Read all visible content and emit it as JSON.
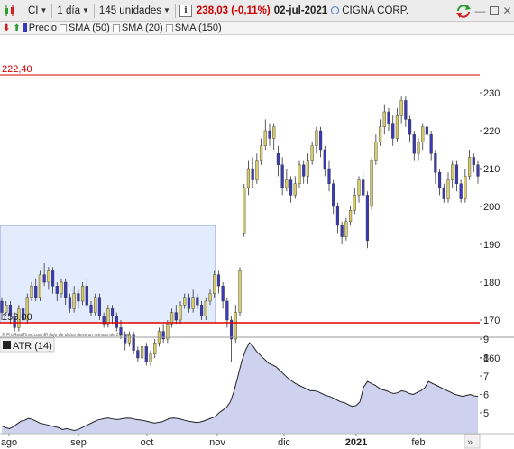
{
  "toolbar": {
    "symbol": "CI",
    "timeframe": "1 día",
    "units": "145 unidades",
    "price_change": "238,03 (-0,11%)",
    "date": "02-jul-2021",
    "instrument_name": "CIGNA CORP."
  },
  "legend": {
    "items": [
      "Precio",
      "SMA (50)",
      "SMA (20)",
      "SMA (150)"
    ]
  },
  "price_lines": [
    {
      "label": "222,40",
      "value": 222.4
    },
    {
      "label": "158,00",
      "value": 158.0
    }
  ],
  "copyright": "© ProRealTime.com  El flujo de datos tiene un retraso de 15 min",
  "atr": {
    "label": "ATR (14)"
  },
  "axis": {
    "price_ticks": [
      "230",
      "220",
      "210",
      "200",
      "190",
      "180",
      "170",
      "160"
    ],
    "atr_ticks": [
      "9",
      "8",
      "7",
      "6",
      "5"
    ],
    "month_labels": [
      "ago",
      "sep",
      "oct",
      "nov",
      "dic",
      "2021",
      "feb"
    ]
  },
  "chart_data": [
    {
      "type": "candlestick",
      "title": "",
      "ylim": [
        155,
        235
      ],
      "candles": [
        [
          175,
          172,
          176,
          170
        ],
        [
          172,
          174,
          175,
          171
        ],
        [
          174,
          171,
          175,
          169
        ],
        [
          171,
          168,
          172,
          167
        ],
        [
          168,
          173,
          174,
          167
        ],
        [
          173,
          170,
          174,
          169
        ],
        [
          170,
          176,
          177,
          169
        ],
        [
          176,
          179,
          180,
          175
        ],
        [
          179,
          176,
          181,
          175
        ],
        [
          176,
          182,
          183,
          175
        ],
        [
          182,
          180,
          185,
          179
        ],
        [
          180,
          183,
          184,
          178
        ],
        [
          183,
          179,
          184,
          177
        ],
        [
          179,
          177,
          180,
          175
        ],
        [
          177,
          180,
          181,
          176
        ],
        [
          180,
          176,
          181,
          174
        ],
        [
          176,
          173,
          177,
          172
        ],
        [
          173,
          177,
          179,
          172
        ],
        [
          177,
          175,
          178,
          173
        ],
        [
          175,
          179,
          180,
          174
        ],
        [
          179,
          174,
          181,
          173
        ],
        [
          174,
          172,
          175,
          171
        ],
        [
          172,
          176,
          177,
          171
        ],
        [
          176,
          171,
          177,
          170
        ],
        [
          171,
          169,
          172,
          168
        ],
        [
          169,
          173,
          174,
          168
        ],
        [
          173,
          171,
          174,
          169
        ],
        [
          171,
          168,
          172,
          167
        ],
        [
          168,
          166,
          170,
          165
        ],
        [
          166,
          164,
          167,
          162
        ],
        [
          164,
          166,
          167,
          163
        ],
        [
          166,
          162,
          167,
          161
        ],
        [
          162,
          160,
          163,
          159
        ],
        [
          160,
          163,
          164,
          159
        ],
        [
          163,
          159,
          164,
          158
        ],
        [
          159,
          161,
          162,
          158
        ],
        [
          161,
          164,
          165,
          160
        ],
        [
          164,
          167,
          168,
          163
        ],
        [
          167,
          165,
          169,
          164
        ],
        [
          165,
          169,
          170,
          164
        ],
        [
          169,
          172,
          173,
          168
        ],
        [
          172,
          170,
          174,
          169
        ],
        [
          170,
          174,
          175,
          169
        ],
        [
          174,
          176,
          177,
          173
        ],
        [
          176,
          173,
          177,
          172
        ],
        [
          173,
          176,
          178,
          172
        ],
        [
          176,
          174,
          177,
          173
        ],
        [
          174,
          171,
          175,
          170
        ],
        [
          171,
          175,
          176,
          170
        ],
        [
          175,
          177,
          178,
          174
        ],
        [
          177,
          182,
          183,
          176
        ],
        [
          182,
          179,
          183,
          177
        ],
        [
          179,
          175,
          180,
          173
        ],
        [
          175,
          170,
          176,
          168
        ],
        [
          170,
          165,
          171,
          159
        ],
        [
          165,
          172,
          174,
          164
        ],
        [
          172,
          183,
          184,
          171
        ],
        [
          193,
          205,
          206,
          192
        ],
        [
          205,
          210,
          212,
          203
        ],
        [
          210,
          207,
          213,
          205
        ],
        [
          207,
          212,
          214,
          206
        ],
        [
          212,
          216,
          218,
          211
        ],
        [
          216,
          220,
          223,
          215
        ],
        [
          220,
          218,
          222,
          216
        ],
        [
          218,
          221,
          222,
          215
        ],
        [
          214,
          211,
          216,
          208
        ],
        [
          211,
          205,
          213,
          203
        ],
        [
          205,
          207,
          210,
          204
        ],
        [
          207,
          203,
          208,
          201
        ],
        [
          203,
          206,
          208,
          202
        ],
        [
          206,
          211,
          212,
          205
        ],
        [
          211,
          208,
          212,
          206
        ],
        [
          208,
          212,
          214,
          206
        ],
        [
          212,
          216,
          217,
          211
        ],
        [
          216,
          220,
          221,
          214
        ],
        [
          220,
          215,
          221,
          213
        ],
        [
          215,
          210,
          216,
          208
        ],
        [
          210,
          206,
          212,
          204
        ],
        [
          206,
          200,
          207,
          198
        ],
        [
          200,
          195,
          201,
          193
        ],
        [
          195,
          192,
          196,
          190
        ],
        [
          192,
          196,
          197,
          191
        ],
        [
          196,
          199,
          200,
          195
        ],
        [
          199,
          203,
          205,
          198
        ],
        [
          203,
          207,
          208,
          201
        ],
        [
          207,
          203,
          209,
          202
        ],
        [
          203,
          191,
          204,
          189
        ],
        [
          200,
          212,
          213,
          199
        ],
        [
          212,
          217,
          219,
          211
        ],
        [
          217,
          221,
          223,
          216
        ],
        [
          221,
          225,
          227,
          219
        ],
        [
          225,
          222,
          226,
          220
        ],
        [
          222,
          218,
          224,
          216
        ],
        [
          218,
          224,
          226,
          217
        ],
        [
          224,
          228,
          229,
          222
        ],
        [
          228,
          223,
          229,
          221
        ],
        [
          223,
          219,
          224,
          217
        ],
        [
          219,
          214,
          220,
          212
        ],
        [
          214,
          217,
          218,
          212
        ],
        [
          217,
          221,
          222,
          215
        ],
        [
          221,
          219,
          222,
          217
        ],
        [
          219,
          214,
          220,
          212
        ],
        [
          214,
          209,
          215,
          206
        ],
        [
          209,
          205,
          210,
          203
        ],
        [
          205,
          202,
          206,
          201
        ],
        [
          202,
          207,
          209,
          201
        ],
        [
          207,
          211,
          212,
          205
        ],
        [
          211,
          206,
          212,
          204
        ],
        [
          206,
          202,
          207,
          201
        ],
        [
          202,
          208,
          210,
          201
        ],
        [
          208,
          213,
          215,
          207
        ],
        [
          213,
          211,
          214,
          209
        ],
        [
          211,
          208,
          212,
          206
        ]
      ]
    },
    {
      "type": "area",
      "title": "ATR (14)",
      "ylim": [
        3.8,
        9.4
      ],
      "values": [
        4.3,
        4.2,
        4.15,
        4.25,
        4.4,
        4.55,
        4.6,
        4.7,
        4.65,
        4.55,
        4.45,
        4.4,
        4.35,
        4.3,
        4.25,
        4.2,
        4.1,
        4.15,
        4.1,
        4.05,
        4.1,
        4.2,
        4.3,
        4.4,
        4.5,
        4.6,
        4.65,
        4.7,
        4.72,
        4.68,
        4.64,
        4.66,
        4.7,
        4.72,
        4.7,
        4.65,
        4.62,
        4.6,
        4.55,
        4.5,
        4.45,
        4.48,
        4.52,
        4.6,
        4.7,
        4.72,
        4.7,
        4.66,
        4.6,
        4.55,
        4.52,
        4.48,
        4.5,
        4.56,
        4.64,
        4.72,
        4.8,
        5.0,
        5.15,
        5.3,
        5.6,
        6.2,
        7.0,
        7.8,
        8.4,
        8.8,
        8.6,
        8.3,
        8.1,
        7.9,
        7.7,
        7.6,
        7.5,
        7.3,
        7.1,
        6.9,
        6.75,
        6.6,
        6.5,
        6.4,
        6.3,
        6.2,
        6.2,
        6.15,
        6.05,
        5.95,
        5.9,
        5.8,
        5.7,
        5.6,
        5.55,
        5.45,
        5.35,
        5.4,
        5.6,
        6.4,
        6.7,
        6.6,
        6.5,
        6.35,
        6.25,
        6.2,
        6.1,
        6.05,
        6.1,
        6.2,
        6.15,
        6.05,
        6.0,
        6.1,
        6.2,
        6.35,
        6.7,
        6.6,
        6.5,
        6.4,
        6.3,
        6.2,
        6.1,
        6.0,
        5.95,
        5.9,
        5.95,
        6.0,
        5.92,
        5.9
      ]
    }
  ],
  "colors": {
    "up_body": "#d8cd6a",
    "down_body": "#3a3ab8",
    "wick": "#333333",
    "line_red": "#e00000",
    "box_fill": "#e3ebff",
    "box_border": "#8aa4d8",
    "atr_fill": "#cfd2ee",
    "price_red": "#cc0000"
  }
}
